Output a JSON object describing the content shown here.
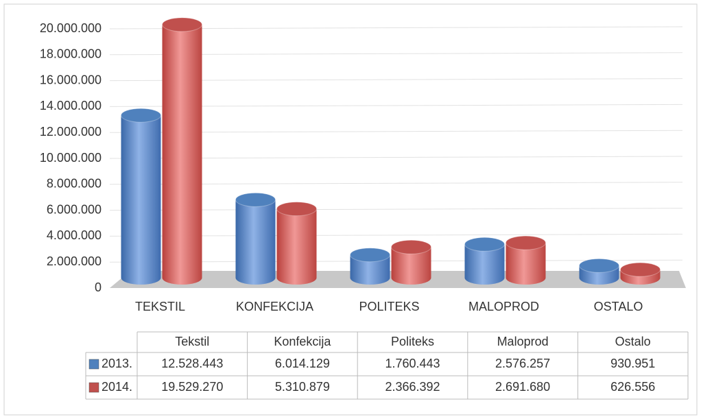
{
  "chart_data": {
    "type": "bar",
    "categories": [
      "TEKSTIL",
      "KONFEKCIJA",
      "POLITEKS",
      "MALOPROD",
      "OSTALO"
    ],
    "table_columns": [
      "Tekstil",
      "Konfekcija",
      "Politeks",
      "Maloprod",
      "Ostalo"
    ],
    "series": [
      {
        "name": "2013.",
        "color": "#4f81bd",
        "values": [
          12528443,
          6014129,
          1760443,
          2576257,
          930951
        ],
        "value_labels": [
          "12.528.443",
          "6.014.129",
          "1.760.443",
          "2.576.257",
          "930.951"
        ]
      },
      {
        "name": "2014.",
        "color": "#c0504d",
        "values": [
          19529270,
          5310879,
          2366392,
          2691680,
          626556
        ],
        "value_labels": [
          "19.529.270",
          "5.310.879",
          "2.366.392",
          "2.691.680",
          "626.556"
        ]
      }
    ],
    "ylim": [
      0,
      20000000
    ],
    "yticks": [
      0,
      {
        "value": 2000000,
        "label": "2.000.000"
      },
      {
        "value": 4000000,
        "label": "4.000.000"
      },
      {
        "value": 6000000,
        "label": "6.000.000"
      },
      {
        "value": 8000000,
        "label": "8.000.000"
      },
      {
        "value": 10000000,
        "label": "10.000.000"
      },
      {
        "value": 12000000,
        "label": "12.000.000"
      },
      {
        "value": 14000000,
        "label": "14.000.000"
      },
      {
        "value": 16000000,
        "label": "16.000.000"
      },
      {
        "value": 18000000,
        "label": "18.000.000"
      },
      {
        "value": 20000000,
        "label": "20.000.000"
      }
    ],
    "grid": true
  }
}
